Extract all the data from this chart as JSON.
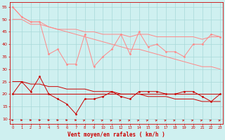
{
  "x": [
    0,
    1,
    2,
    3,
    4,
    5,
    6,
    7,
    8,
    9,
    10,
    11,
    12,
    13,
    14,
    15,
    16,
    17,
    18,
    19,
    20,
    21,
    22,
    23
  ],
  "rafales_jagged": [
    55,
    51,
    49,
    49,
    36,
    38,
    32,
    32,
    44,
    31,
    35,
    38,
    44,
    36,
    45,
    39,
    40,
    37,
    37,
    35,
    40,
    40,
    44,
    43
  ],
  "rafales_smooth1": [
    50,
    50,
    48,
    48,
    47,
    46,
    46,
    46,
    45,
    45,
    44,
    44,
    44,
    43,
    44,
    44,
    43,
    43,
    43,
    43,
    43,
    42,
    43,
    43
  ],
  "rafales_smooth2": [
    55,
    51,
    49,
    49,
    47,
    46,
    45,
    44,
    43,
    42,
    41,
    40,
    39,
    38,
    38,
    37,
    36,
    35,
    34,
    33,
    32,
    31,
    31,
    30
  ],
  "vent_jagged": [
    20,
    25,
    21,
    27,
    20,
    18,
    16,
    12,
    18,
    18,
    19,
    21,
    19,
    18,
    21,
    21,
    21,
    20,
    20,
    21,
    21,
    19,
    17,
    20
  ],
  "vent_smooth1": [
    20,
    20,
    20,
    20,
    20,
    20,
    20,
    20,
    20,
    20,
    20,
    20,
    20,
    20,
    20,
    20,
    20,
    20,
    20,
    20,
    20,
    20,
    20,
    20
  ],
  "vent_smooth2": [
    25,
    25,
    24,
    24,
    23,
    23,
    22,
    22,
    22,
    21,
    21,
    21,
    20,
    20,
    20,
    19,
    19,
    19,
    18,
    18,
    18,
    17,
    17,
    17
  ],
  "bg_color": "#cff0f0",
  "grid_color": "#a8d8d8",
  "line_dark": "#cc0000",
  "line_light": "#ff8888",
  "xlabel": "Vent moyen/en rafales ( km/h )",
  "yticks": [
    10,
    15,
    20,
    25,
    30,
    35,
    40,
    45,
    50,
    55
  ],
  "ylim": [
    8,
    57
  ],
  "xlim": [
    -0.3,
    23.3
  ],
  "arrow_directions_deg": [
    0,
    0,
    0,
    0,
    0,
    0,
    0,
    0,
    45,
    45,
    45,
    45,
    45,
    45,
    45,
    45,
    45,
    45,
    45,
    45,
    45,
    45,
    45,
    45
  ]
}
